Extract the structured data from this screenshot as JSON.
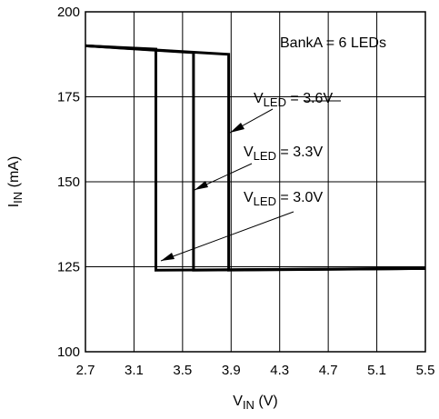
{
  "chart_data": {
    "type": "line",
    "xlabel": {
      "main": "V",
      "sub": "IN",
      "unit": " (V)"
    },
    "ylabel": {
      "main": "I",
      "sub": "IN",
      "unit": " (mA)"
    },
    "xlim": [
      2.7,
      5.5
    ],
    "ylim": [
      100,
      200
    ],
    "xticks": [
      "2.7",
      "3.1",
      "3.5",
      "3.9",
      "4.3",
      "4.7",
      "5.1",
      "5.5"
    ],
    "yticks": [
      "100",
      "125",
      "150",
      "175",
      "200"
    ],
    "grid": true,
    "series": [
      {
        "label_main": "V",
        "label_sub": "LED",
        "label_val": " = 3.6V",
        "x": [
          2.7,
          3.88,
          3.88,
          5.5
        ],
        "y": [
          190,
          187.5,
          124,
          124.5
        ]
      },
      {
        "label_main": "V",
        "label_sub": "LED",
        "label_val": " = 3.3V",
        "x": [
          2.7,
          3.59,
          3.59,
          5.5
        ],
        "y": [
          190,
          188,
          124,
          124.5
        ]
      },
      {
        "label_main": "V",
        "label_sub": "LED",
        "label_val": " = 3.0V",
        "x": [
          2.7,
          3.28,
          3.28,
          5.5
        ],
        "y": [
          190,
          189,
          124,
          124.5
        ]
      }
    ],
    "annotation": "BankA = 6 LEDs"
  }
}
